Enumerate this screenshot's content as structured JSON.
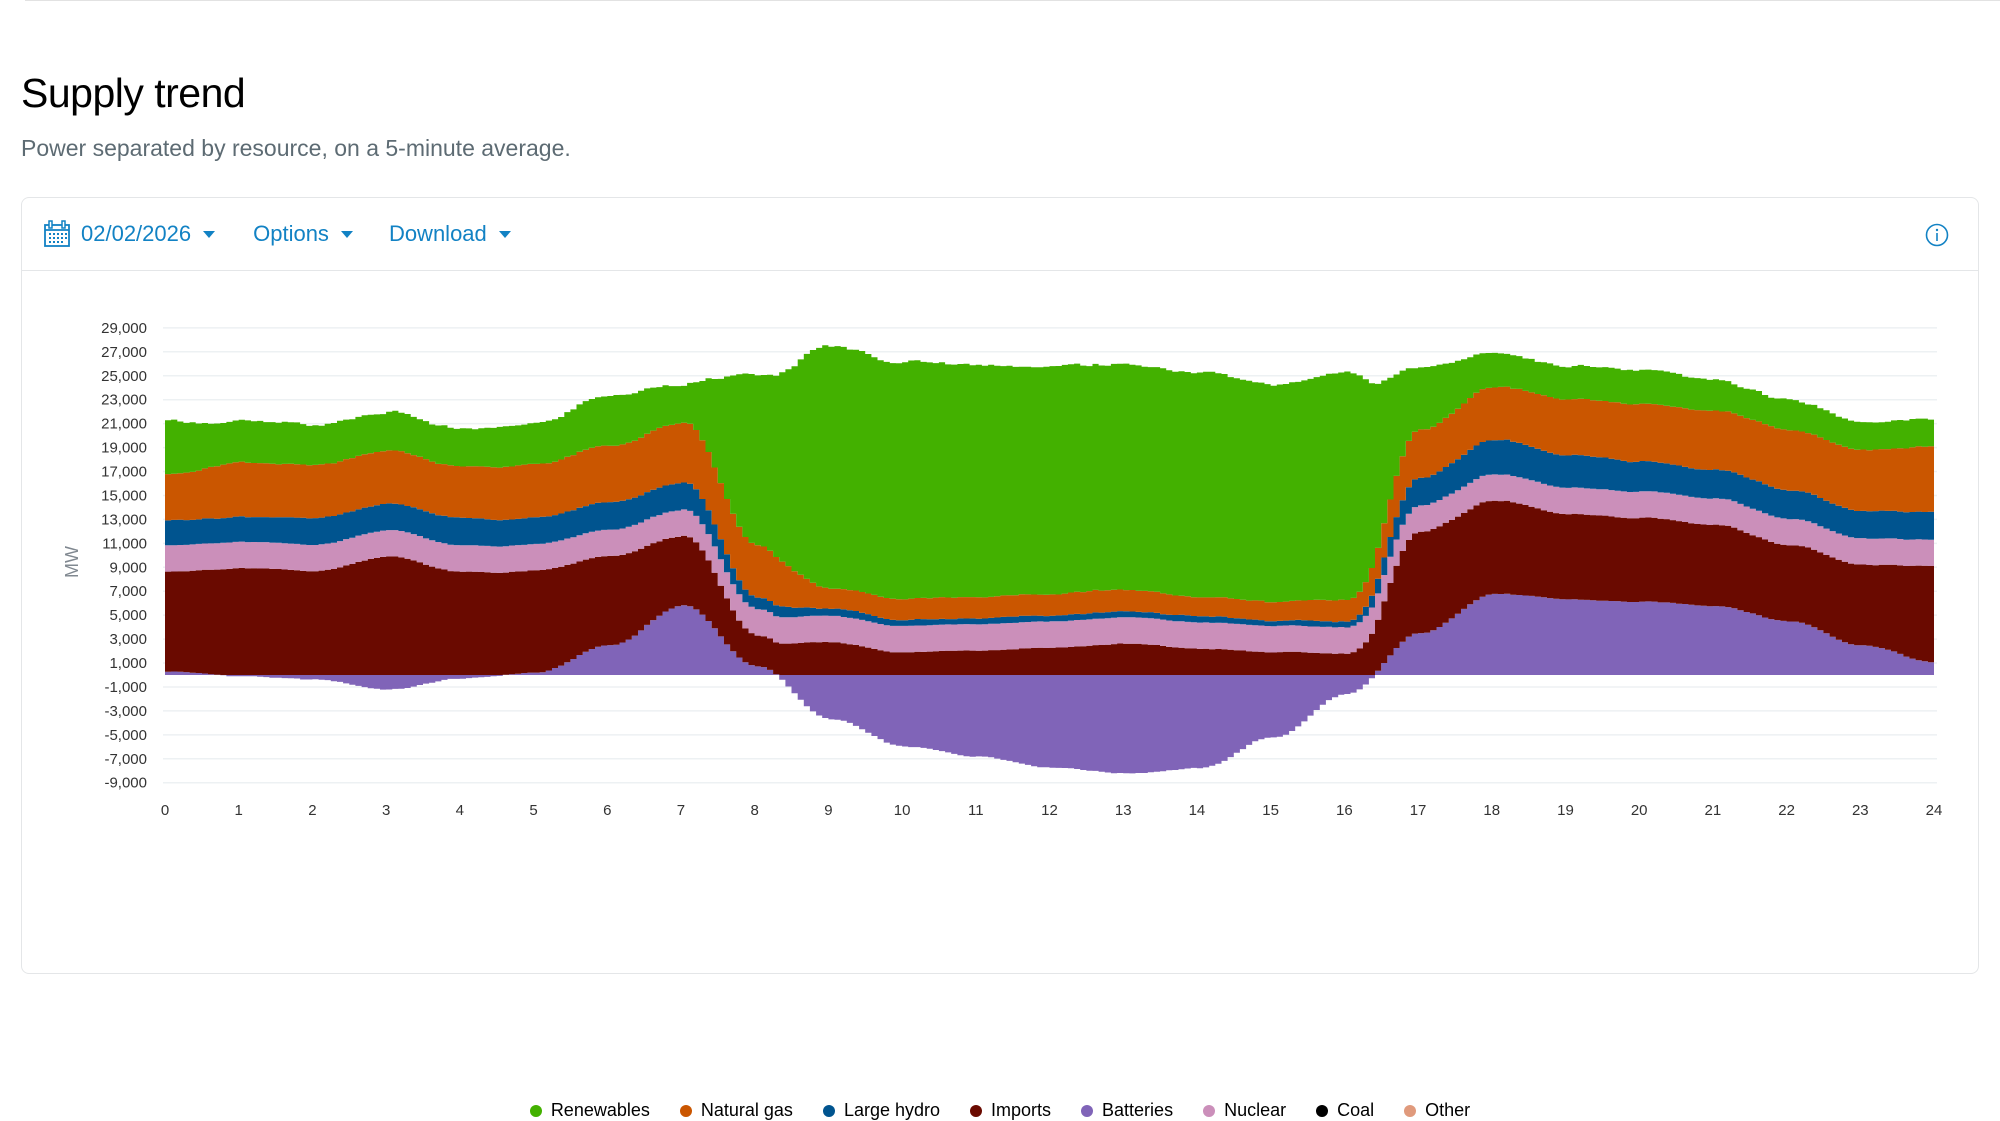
{
  "page": {
    "title": "Supply trend",
    "subtitle": "Power separated by resource, on a 5-minute average."
  },
  "toolbar": {
    "date_label": "02/02/2026",
    "options_label": "Options",
    "download_label": "Download",
    "calendar_icon": "calendar-icon",
    "info_icon": "info-icon"
  },
  "chart_data": {
    "type": "area",
    "stacked": true,
    "step": "5-minute",
    "title": "Supply trend",
    "xlabel": "",
    "ylabel": "MW",
    "xlim": [
      0,
      24
    ],
    "ylim": [
      -10000,
      30000
    ],
    "x_ticks": [
      "0",
      "1",
      "2",
      "3",
      "4",
      "5",
      "6",
      "7",
      "8",
      "9",
      "10",
      "11",
      "12",
      "13",
      "14",
      "15",
      "16",
      "17",
      "18",
      "19",
      "20",
      "21",
      "22",
      "23",
      "24"
    ],
    "y_ticks": [
      "29,000",
      "27,000",
      "25,000",
      "23,000",
      "21,000",
      "19,000",
      "17,000",
      "15,000",
      "13,000",
      "11,000",
      "9,000",
      "7,000",
      "5,000",
      "3,000",
      "1,000",
      "-1,000",
      "-3,000",
      "-5,000",
      "-7,000",
      "-9,000"
    ],
    "y_tick_values": [
      29000,
      27000,
      25000,
      23000,
      21000,
      19000,
      17000,
      15000,
      13000,
      11000,
      9000,
      7000,
      5000,
      3000,
      1000,
      -1000,
      -3000,
      -5000,
      -7000,
      -9000
    ],
    "grid": true,
    "legend_position": "bottom-center",
    "x": [
      0,
      1,
      2,
      3,
      4,
      5,
      6,
      7,
      8,
      9,
      10,
      11,
      12,
      13,
      14,
      15,
      16,
      17,
      18,
      19,
      20,
      21,
      22,
      23,
      24
    ],
    "series": [
      {
        "name": "Batteries",
        "color": "#8064b8",
        "values": [
          300,
          -100,
          -400,
          -1200,
          -300,
          200,
          2500,
          5800,
          700,
          -3700,
          -6000,
          -6800,
          -7700,
          -8200,
          -7800,
          -5200,
          -1600,
          3500,
          6800,
          6300,
          6100,
          5800,
          4500,
          2500,
          1000
        ]
      },
      {
        "name": "Imports",
        "color": "#6a0a00",
        "values": [
          8400,
          8900,
          8700,
          9900,
          8600,
          8500,
          7400,
          5800,
          2600,
          2700,
          1900,
          2100,
          2300,
          2600,
          2200,
          1900,
          1800,
          8500,
          7800,
          7100,
          7000,
          6800,
          6400,
          6700,
          8100
        ]
      },
      {
        "name": "Nuclear",
        "color": "#cb8fba",
        "values": [
          2200,
          2200,
          2200,
          2200,
          2200,
          2200,
          2200,
          2200,
          2200,
          2200,
          2200,
          2200,
          2200,
          2200,
          2200,
          2200,
          2200,
          2200,
          2200,
          2200,
          2200,
          2200,
          2200,
          2200,
          2200
        ]
      },
      {
        "name": "Large hydro",
        "color": "#00548f",
        "values": [
          2100,
          2100,
          2200,
          2200,
          2300,
          2200,
          2300,
          2300,
          1000,
          600,
          500,
          500,
          500,
          500,
          500,
          400,
          500,
          2300,
          2900,
          2700,
          2500,
          2400,
          2400,
          2300,
          2300
        ]
      },
      {
        "name": "Natural gas",
        "color": "#ca5600",
        "values": [
          3900,
          4500,
          4400,
          4400,
          4300,
          4500,
          4700,
          5000,
          4400,
          1700,
          1800,
          1800,
          1800,
          1800,
          1600,
          1600,
          1800,
          4000,
          4400,
          4700,
          4800,
          4900,
          5000,
          5100,
          5500
        ]
      },
      {
        "name": "Renewables",
        "color": "#43b100",
        "values": [
          4400,
          3400,
          3300,
          3200,
          3100,
          3400,
          4200,
          3300,
          14200,
          20200,
          19800,
          19400,
          19000,
          18800,
          18800,
          18100,
          19000,
          5200,
          2900,
          2700,
          2800,
          2500,
          2500,
          2400,
          2200
        ]
      },
      {
        "name": "Coal",
        "color": "#000000",
        "values": [
          0,
          0,
          0,
          0,
          0,
          0,
          0,
          0,
          0,
          0,
          0,
          0,
          0,
          0,
          0,
          0,
          0,
          0,
          0,
          0,
          0,
          0,
          0,
          0,
          0
        ]
      },
      {
        "name": "Other",
        "color": "#e09a7c",
        "values": [
          0,
          0,
          0,
          0,
          0,
          0,
          0,
          0,
          0,
          0,
          0,
          0,
          0,
          0,
          0,
          0,
          0,
          0,
          0,
          0,
          0,
          0,
          0,
          0,
          0
        ]
      }
    ],
    "legend": [
      {
        "label": "Renewables",
        "color": "#43b100"
      },
      {
        "label": "Natural gas",
        "color": "#ca5600"
      },
      {
        "label": "Large hydro",
        "color": "#00548f"
      },
      {
        "label": "Imports",
        "color": "#6a0a00"
      },
      {
        "label": "Batteries",
        "color": "#8064b8"
      },
      {
        "label": "Nuclear",
        "color": "#cb8fba"
      },
      {
        "label": "Coal",
        "color": "#000000"
      },
      {
        "label": "Other",
        "color": "#e09a7c"
      }
    ]
  }
}
